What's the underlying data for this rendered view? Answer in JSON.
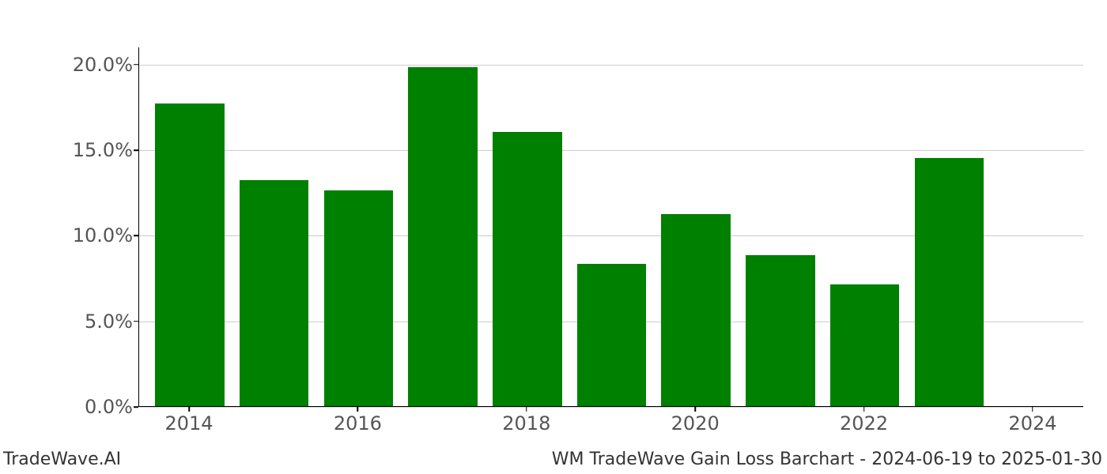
{
  "chart": {
    "type": "bar",
    "background_color": "#ffffff",
    "bar_color": "#008000",
    "grid_color": "#cccccc",
    "axis_color": "#000000",
    "tick_label_color": "#555555",
    "tick_label_fontsize": 24,
    "ylim_min": 0.0,
    "ylim_max": 21.0,
    "y_ticks": [
      {
        "value": 0.0,
        "label": "0.0%"
      },
      {
        "value": 5.0,
        "label": "5.0%"
      },
      {
        "value": 10.0,
        "label": "10.0%"
      },
      {
        "value": 15.0,
        "label": "15.0%"
      },
      {
        "value": 20.0,
        "label": "20.0%"
      }
    ],
    "x_range_min": 2013.4,
    "x_range_max": 2024.6,
    "x_ticks": [
      {
        "value": 2014,
        "label": "2014"
      },
      {
        "value": 2016,
        "label": "2016"
      },
      {
        "value": 2018,
        "label": "2018"
      },
      {
        "value": 2020,
        "label": "2020"
      },
      {
        "value": 2022,
        "label": "2022"
      },
      {
        "value": 2024,
        "label": "2024"
      }
    ],
    "bar_width": 0.82,
    "series": [
      {
        "year": 2014,
        "value": 17.7
      },
      {
        "year": 2015,
        "value": 13.2
      },
      {
        "year": 2016,
        "value": 12.6
      },
      {
        "year": 2017,
        "value": 19.8
      },
      {
        "year": 2018,
        "value": 16.0
      },
      {
        "year": 2019,
        "value": 8.3
      },
      {
        "year": 2020,
        "value": 11.2
      },
      {
        "year": 2021,
        "value": 8.8
      },
      {
        "year": 2022,
        "value": 7.1
      },
      {
        "year": 2023,
        "value": 14.5
      }
    ]
  },
  "footer": {
    "left": "TradeWave.AI",
    "right": "WM TradeWave Gain Loss Barchart - 2024-06-19 to 2025-01-30",
    "fontsize": 22,
    "color": "#333333"
  }
}
